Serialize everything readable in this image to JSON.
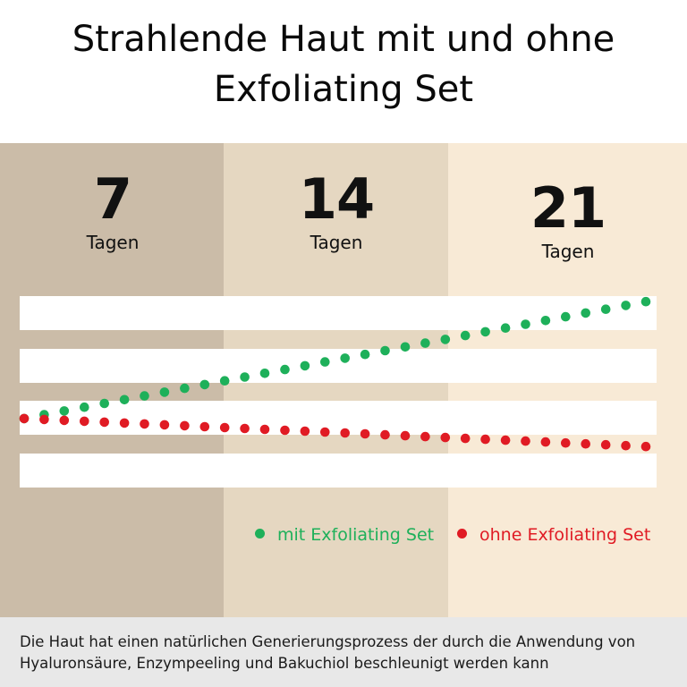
{
  "title_lines": [
    "Strahlende Haut mit und ohne",
    "Exfoliating Set"
  ],
  "periods": [
    {
      "number": "7",
      "unit": "Tagen"
    },
    {
      "number": "14",
      "unit": "Tagen"
    },
    {
      "number": "21",
      "unit": "Tagen"
    }
  ],
  "colors": {
    "band_7": "#cbbca8",
    "band_14": "#e5d7c1",
    "band_21": "#f8ead6",
    "stripe": "#ffffff",
    "with_set": "#1eb05a",
    "without_set": "#e01b24",
    "caption_bg": "#e8e8e8"
  },
  "legend": [
    {
      "label": "mit Exfoliating Set",
      "color": "#1eb05a"
    },
    {
      "label": "ohne Exfoliating Set",
      "color": "#e01b24"
    }
  ],
  "chart_data": {
    "type": "scatter",
    "style": "dotted lines over horizontal white stripes, no axes, no tick labels",
    "x_start_day": 0,
    "x_end_day": 21,
    "y_min": 0,
    "y_max": 4,
    "series": [
      {
        "name": "mit Exfoliating Set",
        "color": "#1eb05a",
        "points": 32,
        "start_value": 1.4,
        "end_value": 3.9
      },
      {
        "name": "ohne Exfoliating Set",
        "color": "#e01b24",
        "points": 32,
        "start_value": 1.4,
        "end_value": 0.8
      }
    ]
  },
  "caption": "Die Haut hat einen natürlichen Generierungsprozess der durch die Anwendung von Hyaluronsäure, Enzympeeling und Bakuchiol beschleunigt werden kann"
}
